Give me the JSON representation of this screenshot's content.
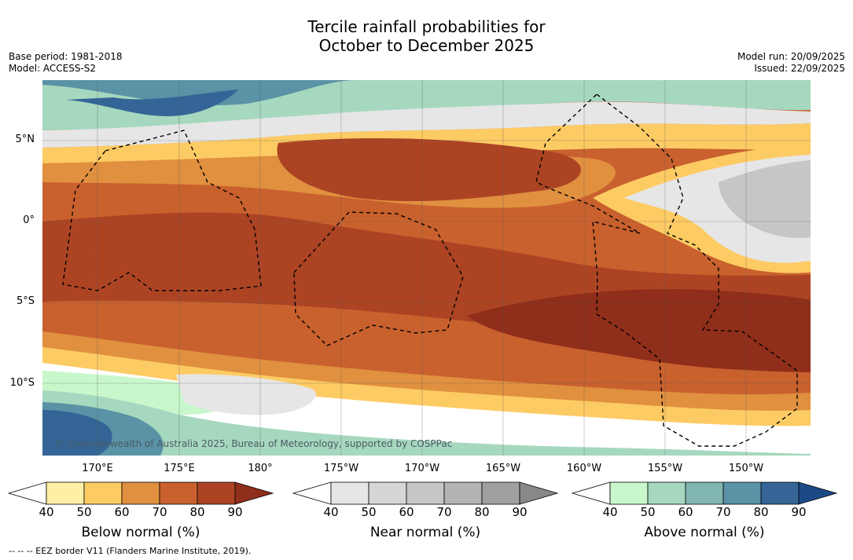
{
  "title": {
    "line1": "Tercile rainfall probabilities for",
    "line2": "October to December 2025"
  },
  "meta": {
    "base_period": "Base period: 1981-2018",
    "model": "Model: ACCESS-S2",
    "model_run": "Model run: 20/09/2025",
    "issued": "Issued: 22/09/2025"
  },
  "map": {
    "copyright": "© Commonwealth of Australia 2025, Bureau of Meteorology, supported by COSPPac",
    "lat_labels": [
      "5°N",
      "0°",
      "5°S",
      "10°S"
    ],
    "lon_labels": [
      "170°E",
      "175°E",
      "180°",
      "175°W",
      "170°W",
      "165°W",
      "160°W",
      "155°W",
      "150°W"
    ]
  },
  "colorbars": [
    {
      "title": "Below normal (%)",
      "ticks": [
        "40",
        "50",
        "60",
        "70",
        "80",
        "90"
      ],
      "colors": [
        "#ffefa5",
        "#fdcb63",
        "#e0903f",
        "#c9612e",
        "#ac4424",
        "#8f2e1a"
      ]
    },
    {
      "title": "Near normal (%)",
      "ticks": [
        "40",
        "50",
        "60",
        "70",
        "80",
        "90"
      ],
      "colors": [
        "#e6e6e6",
        "#d6d6d6",
        "#c6c6c6",
        "#b4b4b4",
        "#a0a0a0",
        "#888888"
      ]
    },
    {
      "title": "Above normal (%)",
      "ticks": [
        "40",
        "50",
        "60",
        "70",
        "80",
        "90"
      ],
      "colors": [
        "#c8f7cb",
        "#a6d8bf",
        "#82b6b0",
        "#5a92a6",
        "#356596",
        "#1c4a86"
      ]
    }
  ],
  "footnote": "--  --  -- EEZ border V11 (Flanders Marine Institute, 2019)."
}
